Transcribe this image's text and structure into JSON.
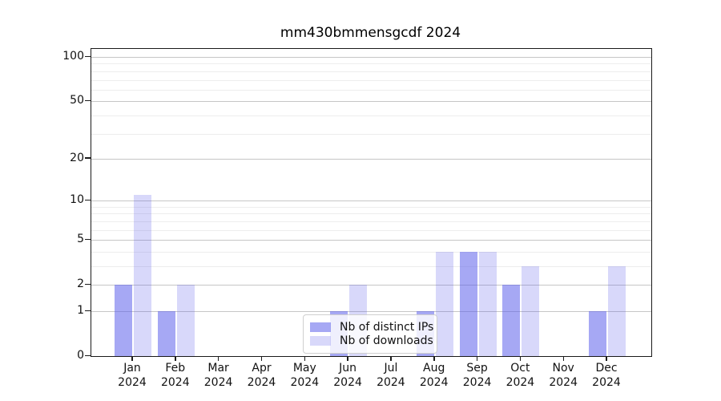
{
  "title": "mm430bmmensgcdf 2024",
  "legend": {
    "items": [
      {
        "label": "Nb of distinct IPs",
        "color": "rgba(90,94,235,0.54)"
      },
      {
        "label": "Nb of downloads",
        "color": "rgba(90,94,235,0.24)"
      }
    ]
  },
  "colors": {
    "bar_distinct_ips": "rgba(90,94,235,0.54)",
    "bar_downloads": "rgba(90,94,235,0.24)",
    "bar_solid_dark": "#a6a8f4",
    "bar_solid_light": "#d7d9f8",
    "grid_major": "#c6c6c6",
    "grid_minor": "#ededed",
    "axis": "#1a1a1a",
    "background": "#ffffff"
  },
  "chart_data": {
    "type": "bar",
    "title": "mm430bmmensgcdf 2024",
    "categories": [
      "Jan 2024",
      "Feb 2024",
      "Mar 2024",
      "Apr 2024",
      "May 2024",
      "Jun 2024",
      "Jul 2024",
      "Aug 2024",
      "Sep 2024",
      "Oct 2024",
      "Nov 2024",
      "Dec 2024"
    ],
    "series": [
      {
        "name": "Nb of distinct IPs",
        "color": "rgba(90,94,235,0.54)",
        "values": [
          2,
          1,
          0,
          0,
          0,
          1,
          0,
          1,
          4,
          2,
          0,
          1
        ]
      },
      {
        "name": "Nb of downloads",
        "color": "rgba(90,94,235,0.24)",
        "values": [
          11,
          2,
          0,
          0,
          0,
          2,
          0,
          4,
          4,
          3,
          0,
          3
        ]
      }
    ],
    "xlabel": "",
    "ylabel": "",
    "yscale": "log1p",
    "ylim": [
      0,
      100
    ],
    "y_ticks": [
      0,
      1,
      2,
      5,
      10,
      20,
      50,
      100
    ],
    "y_minor_ticks": [
      3,
      4,
      6,
      7,
      8,
      9,
      30,
      40,
      60,
      70,
      80,
      90
    ],
    "grid": true,
    "legend_position": "lower center"
  }
}
